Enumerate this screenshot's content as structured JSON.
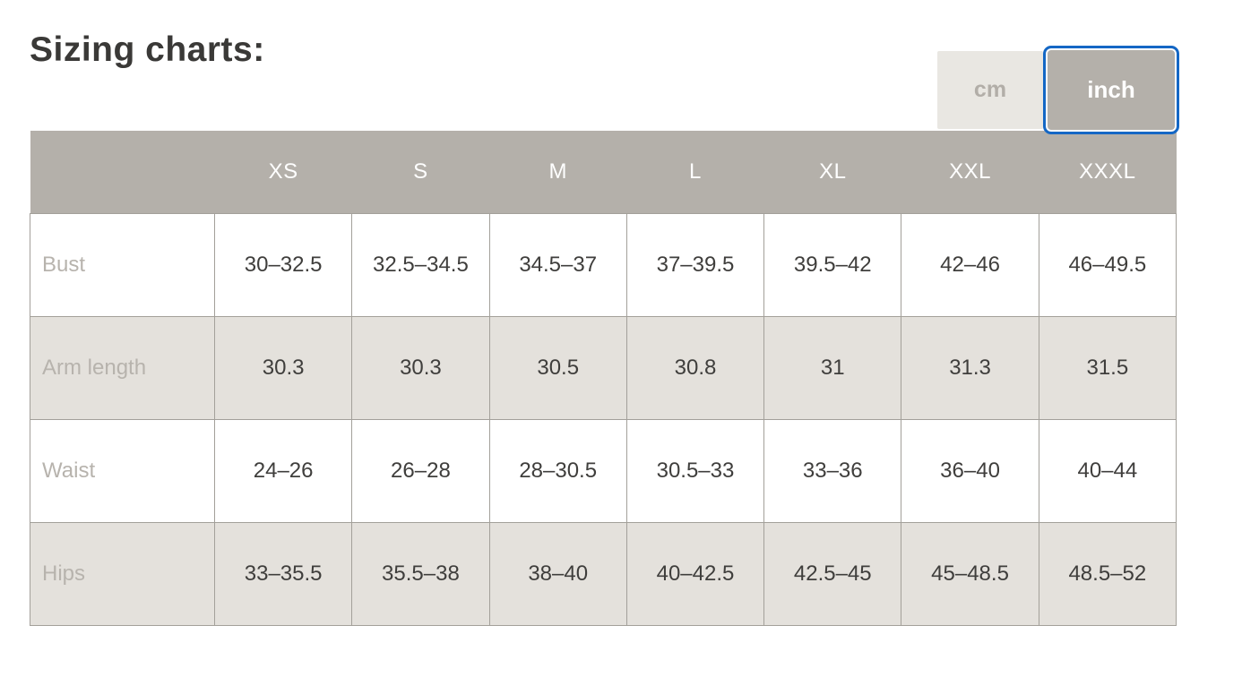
{
  "page": {
    "title": "Sizing charts:"
  },
  "unit_toggle": {
    "active_option": "inch",
    "options": [
      {
        "label": "cm",
        "active": false
      },
      {
        "label": "inch",
        "active": true
      }
    ]
  },
  "colors": {
    "accent_blue": "#1467c5",
    "header_gray": "#b4b0aa",
    "alt_row_gray": "#e4e1dc",
    "border_gray": "#a3a09a",
    "label_gray": "#b7b3ad",
    "value_text": "#3f3e3c",
    "inactive_btn_bg": "#e9e7e2"
  },
  "table": {
    "unit": "inch",
    "columns": [
      "XS",
      "S",
      "M",
      "L",
      "XL",
      "XXL",
      "XXXL"
    ],
    "rows": [
      {
        "label": "Bust",
        "values": [
          "30–32.5",
          "32.5–34.5",
          "34.5–37",
          "37–39.5",
          "39.5–42",
          "42–46",
          "46–49.5"
        ]
      },
      {
        "label": "Arm length",
        "values": [
          "30.3",
          "30.3",
          "30.5",
          "30.8",
          "31",
          "31.3",
          "31.5"
        ]
      },
      {
        "label": "Waist",
        "values": [
          "24–26",
          "26–28",
          "28–30.5",
          "30.5–33",
          "33–36",
          "36–40",
          "40–44"
        ]
      },
      {
        "label": "Hips",
        "values": [
          "33–35.5",
          "35.5–38",
          "38–40",
          "40–42.5",
          "42.5–45",
          "45–48.5",
          "48.5–52"
        ]
      }
    ]
  }
}
